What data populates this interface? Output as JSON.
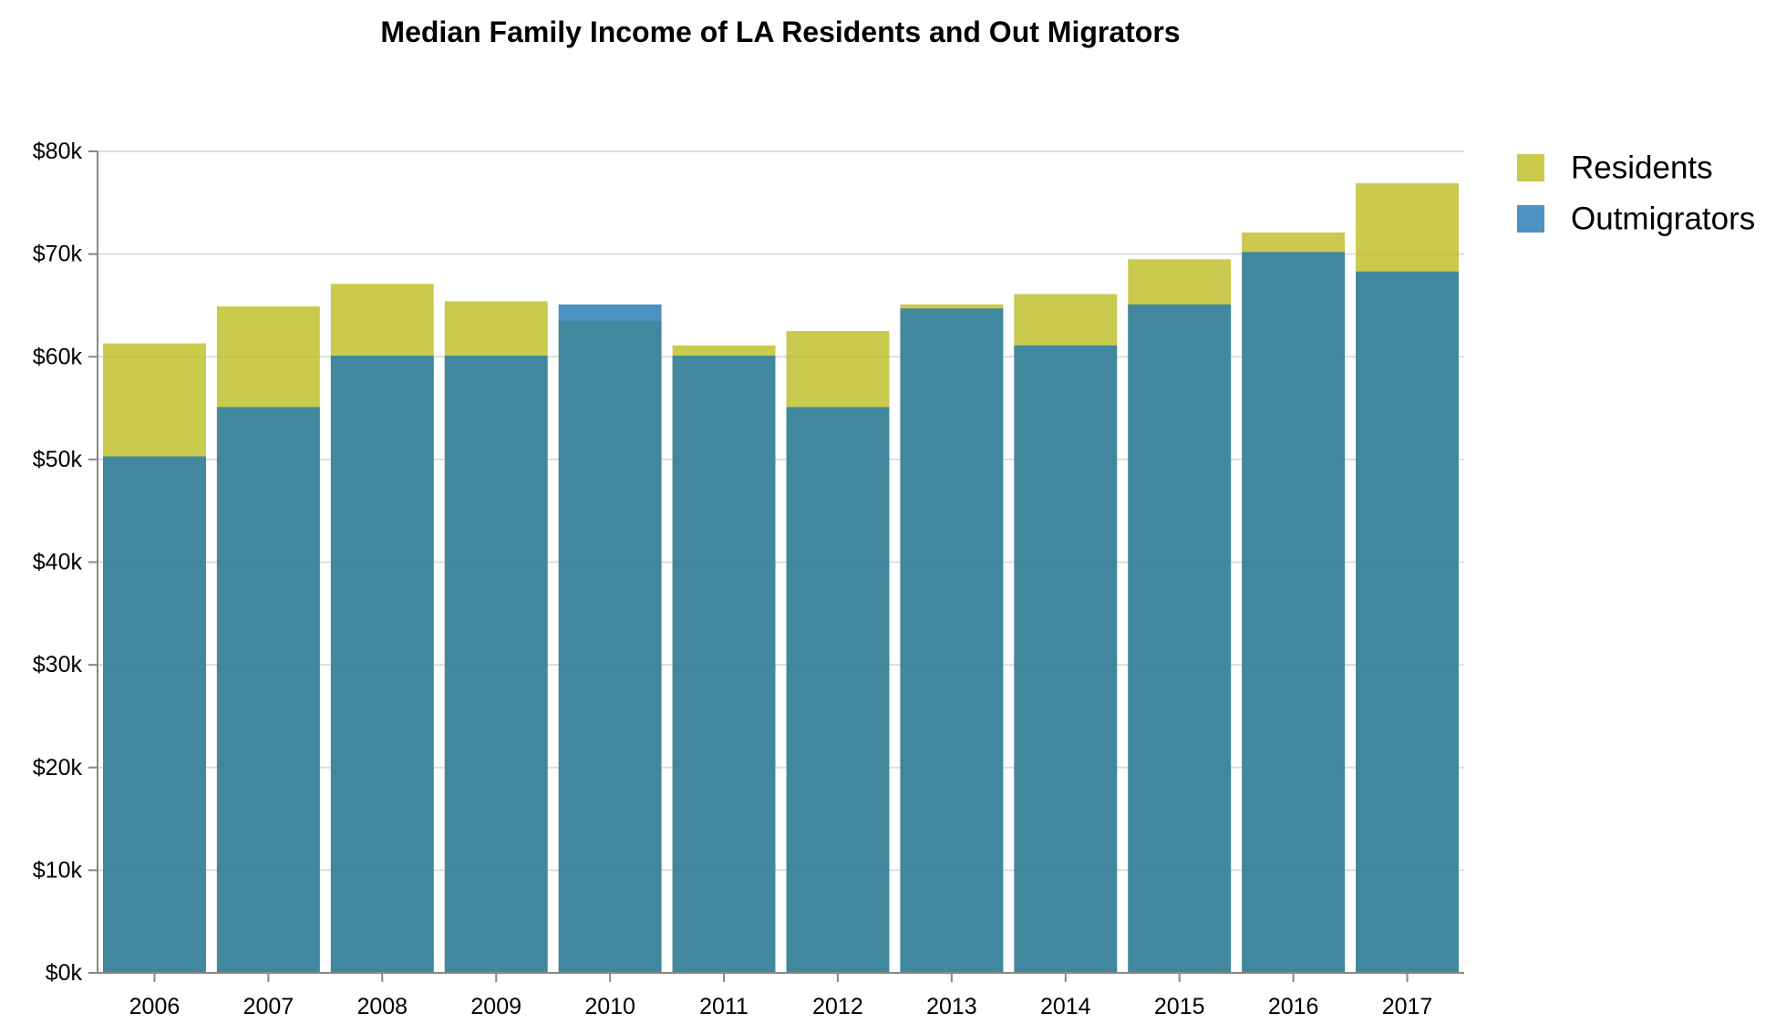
{
  "chart_data": {
    "type": "bar",
    "title": "Median Family Income of LA Residents and Out Migrators",
    "xlabel": "",
    "ylabel": "",
    "categories": [
      "2006",
      "2007",
      "2008",
      "2009",
      "2010",
      "2011",
      "2012",
      "2013",
      "2014",
      "2015",
      "2016",
      "2017"
    ],
    "series": [
      {
        "name": "Residents",
        "color": "#bcbd22",
        "values": [
          61300,
          64900,
          67100,
          65400,
          63500,
          61100,
          62500,
          65100,
          66100,
          69500,
          72100,
          76900
        ]
      },
      {
        "name": "Outmigrators",
        "color": "#1f77b4",
        "values": [
          50300,
          55100,
          60100,
          60100,
          65100,
          60100,
          55100,
          64700,
          61100,
          65100,
          70200,
          68300
        ]
      }
    ],
    "bar_layout": "overlaid",
    "bar_opacity": 0.8,
    "ylim": [
      0,
      80000
    ],
    "yticks": [
      0,
      10000,
      20000,
      30000,
      40000,
      50000,
      60000,
      70000,
      80000
    ],
    "ytick_labels": [
      "$0k",
      "$10k",
      "$20k",
      "$30k",
      "$40k",
      "$50k",
      "$60k",
      "$70k",
      "$80k"
    ],
    "grid": true,
    "legend_position": "top-right"
  }
}
